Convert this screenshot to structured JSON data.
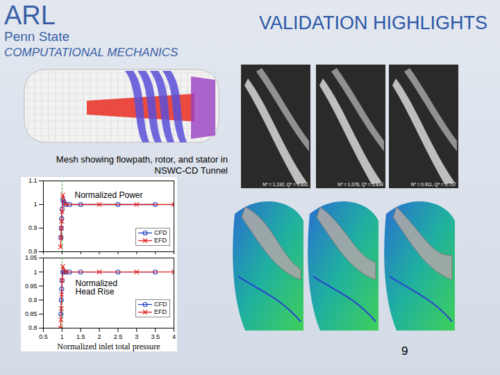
{
  "header": {
    "logo": "ARL",
    "org": "Penn State",
    "group": "COMPUTATIONAL MECHANICS",
    "title": "VALIDATION HIGHLIGHTS"
  },
  "mesh_caption": "Mesh showing flowpath, rotor, and stator in NSWC-CD Tunnel",
  "photo_labels": [
    "N* = 1.192, Q* = 0.831",
    "N* = 1.076, Q* = 0.834",
    "N* = 0.911, Q* = 0.757"
  ],
  "page_number": "9",
  "chart_data": [
    {
      "type": "line",
      "title": "Normalized Power",
      "xlim": [
        0.5,
        4
      ],
      "xticks": [
        0.5,
        1,
        1.5,
        2,
        2.5,
        3,
        3.5,
        4
      ],
      "ylim": [
        0.8,
        1.1
      ],
      "yticks": [
        0.8,
        0.9,
        1,
        1.1
      ],
      "tick_labels": "y",
      "grid": false,
      "legend": "lower right",
      "vline": {
        "value": 1,
        "color": "#2ca02c"
      },
      "series": [
        {
          "name": "CFD",
          "color": "#2040c0",
          "marker": "circle",
          "x": [
            0.97,
            0.98,
            0.99,
            1.0,
            1.02,
            1.05,
            1.1,
            1.2,
            1.5,
            2.5,
            3.5
          ],
          "values": [
            0.86,
            0.9,
            0.94,
            0.98,
            1.02,
            1.01,
            1.0,
            1.0,
            1.0,
            1.0,
            1.0
          ]
        },
        {
          "name": "EFD",
          "color": "#e02020",
          "marker": "x",
          "x": [
            0.96,
            0.97,
            0.98,
            0.99,
            1.0,
            1.02,
            1.1,
            2.0,
            3.0,
            4.0
          ],
          "values": [
            0.82,
            0.86,
            0.9,
            0.93,
            0.97,
            1.04,
            1.0,
            1.0,
            1.0,
            1.0
          ]
        }
      ]
    },
    {
      "type": "line",
      "title": "Normalized Head Rise",
      "x_label": "Normalized inlet total pressure",
      "xlim": [
        0.5,
        4
      ],
      "xticks": [
        0.5,
        1,
        1.5,
        2,
        2.5,
        3,
        3.5,
        4
      ],
      "ylim": [
        0.8,
        1.05
      ],
      "yticks": [
        0.8,
        0.85,
        0.9,
        0.95,
        1,
        1.05
      ],
      "grid": false,
      "legend": "lower right",
      "vline": {
        "value": 1,
        "color": "#2ca02c"
      },
      "series": [
        {
          "name": "CFD",
          "color": "#2040c0",
          "marker": "circle",
          "x": [
            0.97,
            0.98,
            0.99,
            1.0,
            1.02,
            1.05,
            1.1,
            1.2,
            1.5,
            2.5,
            3.5
          ],
          "values": [
            0.85,
            0.9,
            0.94,
            0.97,
            1.0,
            1.0,
            1.0,
            1.0,
            1.0,
            1.0,
            1.0
          ]
        },
        {
          "name": "EFD",
          "color": "#e02020",
          "marker": "x",
          "x": [
            0.96,
            0.97,
            0.98,
            0.99,
            1.0,
            1.02,
            1.1,
            2.0,
            3.0,
            4.0
          ],
          "values": [
            0.8,
            0.83,
            0.87,
            0.92,
            0.97,
            1.02,
            1.0,
            1.0,
            1.0,
            1.0
          ]
        }
      ]
    }
  ]
}
